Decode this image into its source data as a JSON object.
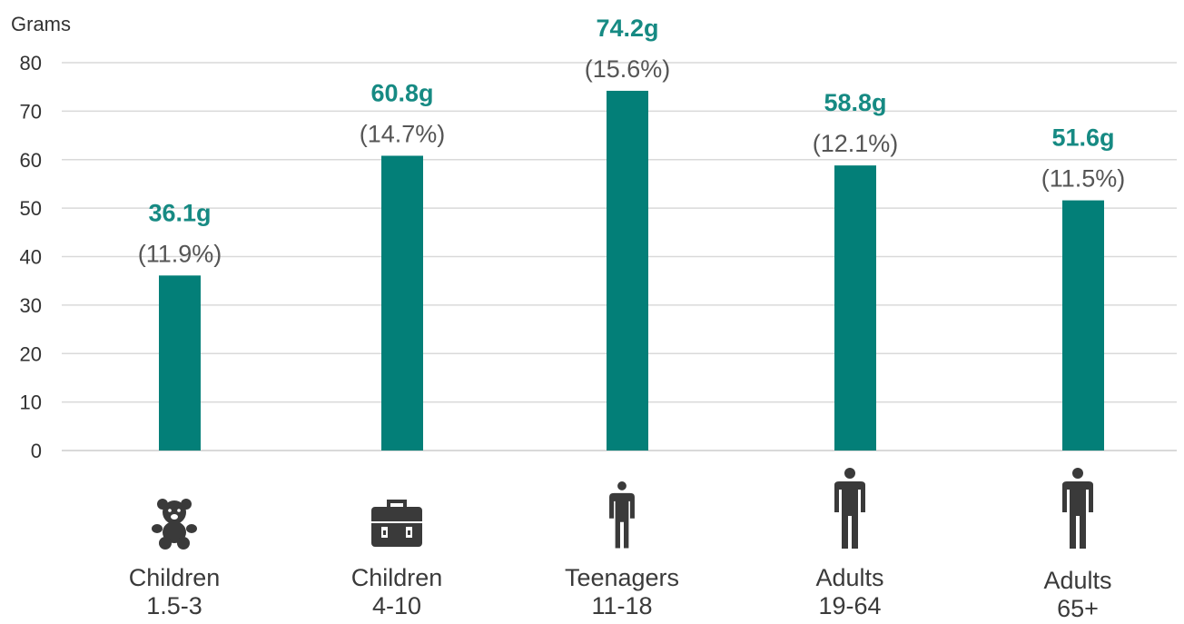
{
  "chart_data": {
    "type": "bar",
    "ylabel": "Grams",
    "ylim": [
      0,
      80
    ],
    "yticks": [
      0,
      10,
      20,
      30,
      40,
      50,
      60,
      70,
      80
    ],
    "grid": true,
    "colors": {
      "bar": "#037f78",
      "value_label": "#168a83"
    },
    "categories": [
      {
        "line1": "Children",
        "line2": "1.5-3",
        "icon": "teddy-bear-icon"
      },
      {
        "line1": "Children",
        "line2": "4-10",
        "icon": "lunchbox-icon"
      },
      {
        "line1": "Teenagers",
        "line2": "11-18",
        "icon": "teenager-icon"
      },
      {
        "line1": "Adults",
        "line2": "19-64",
        "icon": "adult-icon"
      },
      {
        "line1": "Adults",
        "line2": "65+",
        "icon": "older-adult-icon"
      }
    ],
    "values": [
      36.1,
      60.8,
      74.2,
      58.8,
      51.6
    ],
    "value_labels": [
      "36.1g",
      "60.8g",
      "74.2g",
      "58.8g",
      "51.6g"
    ],
    "percent_labels": [
      "(11.9%)",
      "(14.7%)",
      "(15.6%)",
      "(12.1%)",
      "(11.5%)"
    ]
  }
}
